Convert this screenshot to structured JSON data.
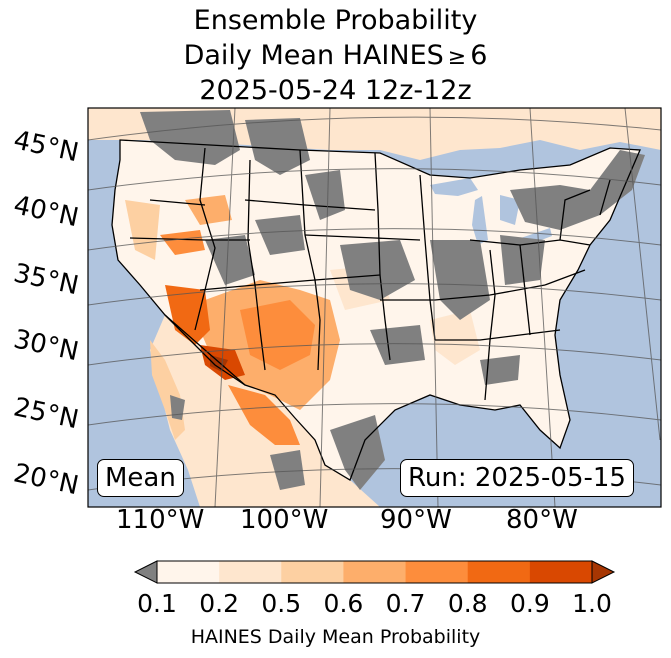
{
  "title": {
    "line1": "Ensemble Probability",
    "line2_prefix": "Daily Mean HAINES",
    "line2_symbol": "≥",
    "line2_value": "6",
    "line3": "2025-05-24 12z-12z"
  },
  "map": {
    "lat_labels": [
      "45°N",
      "40°N",
      "35°N",
      "30°N",
      "25°N",
      "20°N"
    ],
    "lon_labels": [
      "110°W",
      "100°W",
      "90°W",
      "80°W"
    ],
    "left_box": "Mean",
    "right_box": "Run: 2025-05-15",
    "colors": {
      "ocean": "#b0c4de",
      "nodata_gray": "#808080",
      "lake": "#b0c4de"
    }
  },
  "colorbar": {
    "tick_labels": [
      "0.1",
      "0.2",
      "0.5",
      "0.6",
      "0.7",
      "0.8",
      "0.9",
      "1.0"
    ],
    "colors": [
      "#fff5eb",
      "#fee6ce",
      "#fdd0a2",
      "#fdae6b",
      "#fd8d3c",
      "#f16913",
      "#d94801",
      "#a63603"
    ],
    "under_color": "#808080",
    "label": "HAINES Daily Mean Probability"
  }
}
